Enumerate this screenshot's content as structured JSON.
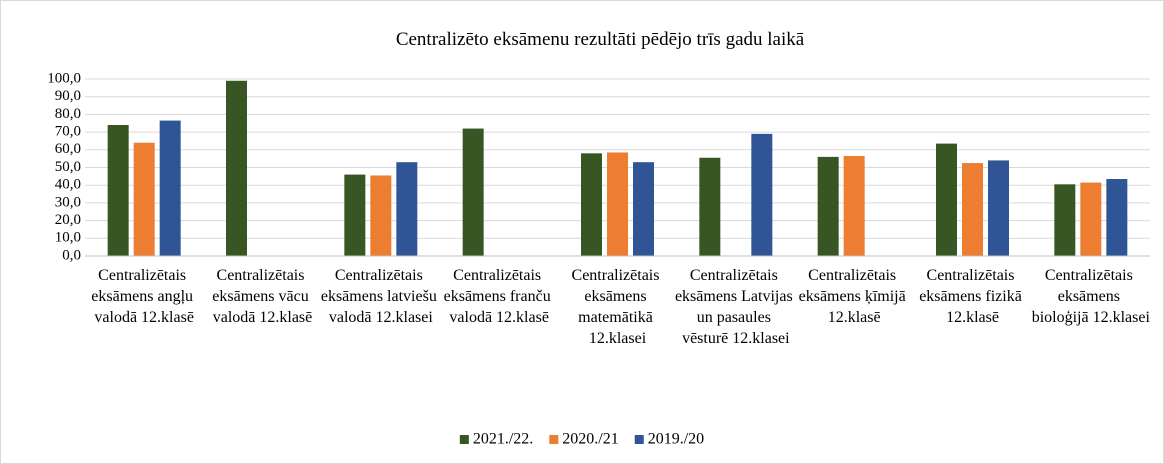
{
  "chart_data": {
    "type": "bar",
    "title": "Centralizēto eksāmenu rezultāti pēdējo trīs gadu laikā",
    "categories": [
      "Centralizētais eksāmens angļu valodā 12.klasē",
      "Centralizētais eksāmens vācu valodā 12.klasē",
      "Centralizētais eksāmens latviešu valodā 12.klasei",
      "Centralizētais eksāmens franču valodā 12.klasē",
      "Centralizētais eksāmens matemātikā 12.klasei",
      "Centralizētais eksāmens Latvijas un pasaules vēsturē 12.klasei",
      "Centralizētais eksāmens ķīmijā 12.klasē",
      "Centralizētais eksāmens fizikā 12.klasē",
      "Centralizētais eksāmens bioloģijā 12.klasei"
    ],
    "series": [
      {
        "name": "2021./22.",
        "color": "#375623",
        "values": [
          74,
          99,
          46,
          72,
          58,
          55.5,
          56,
          63.5,
          40.5
        ]
      },
      {
        "name": "2020./21",
        "color": "#ed7d31",
        "values": [
          64,
          null,
          45.5,
          null,
          58.5,
          null,
          56.5,
          52.5,
          41.5
        ]
      },
      {
        "name": "2019./20",
        "color": "#2f5597",
        "values": [
          76.5,
          null,
          53,
          null,
          53,
          69,
          null,
          54,
          43.5
        ]
      }
    ],
    "ylim": [
      0,
      100
    ],
    "yticks": [
      {
        "value": 0,
        "label": "0,0"
      },
      {
        "value": 10,
        "label": "10,0"
      },
      {
        "value": 20,
        "label": "20,0"
      },
      {
        "value": 30,
        "label": "30,0"
      },
      {
        "value": 40,
        "label": "40,0"
      },
      {
        "value": 50,
        "label": "50,0"
      },
      {
        "value": 60,
        "label": "60,0"
      },
      {
        "value": 70,
        "label": "70,0"
      },
      {
        "value": 80,
        "label": "80,0"
      },
      {
        "value": 90,
        "label": "90,0"
      },
      {
        "value": 100,
        "label": "100,0"
      }
    ],
    "grid": true,
    "legend": "bottom"
  }
}
